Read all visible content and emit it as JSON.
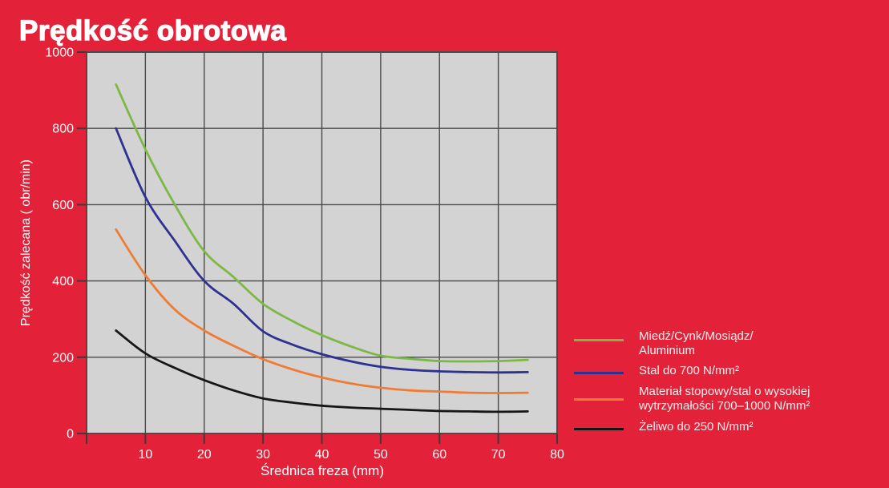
{
  "title": "Prędkość obrotowa",
  "chart_data": {
    "type": "line",
    "title": "Prędkość obrotowa",
    "xlabel": "Średnica freza (mm)",
    "ylabel": "Prędkość zalecana ( obr/min)",
    "xlim": [
      0,
      80
    ],
    "ylim": [
      0,
      1000
    ],
    "grid": true,
    "x_gridlines": [
      10,
      20,
      30,
      40,
      50,
      60,
      70
    ],
    "y_gridlines": [
      200,
      400,
      600,
      800
    ],
    "x_ticks": [
      {
        "value": 0,
        "label": ""
      },
      {
        "value": 10,
        "label": "10"
      },
      {
        "value": 20,
        "label": "20"
      },
      {
        "value": 30,
        "label": "30"
      },
      {
        "value": 40,
        "label": "40"
      },
      {
        "value": 50,
        "label": "50"
      },
      {
        "value": 60,
        "label": "60"
      },
      {
        "value": 70,
        "label": "70"
      },
      {
        "value": 80,
        "label": "80"
      }
    ],
    "y_ticks": [
      {
        "value": 0,
        "label": "0"
      },
      {
        "value": 200,
        "label": "200"
      },
      {
        "value": 400,
        "label": "400"
      },
      {
        "value": 600,
        "label": "600"
      },
      {
        "value": 800,
        "label": "800"
      },
      {
        "value": 1000,
        "label": "1000"
      }
    ],
    "colors": {
      "background": "#e32138",
      "plot_bg": "#d3d3d3",
      "grid": "#4a4a4a",
      "tick": "#3c3c3c",
      "label": "#ffffff"
    },
    "legend_position": "right-bottom",
    "series": [
      {
        "name": "Miedź/Cynk/Mosiądz/Aluminium",
        "color": "#7cb944",
        "points": [
          [
            5,
            915
          ],
          [
            10,
            745
          ],
          [
            15,
            600
          ],
          [
            20,
            478
          ],
          [
            25,
            410
          ],
          [
            30,
            340
          ],
          [
            35,
            295
          ],
          [
            40,
            258
          ],
          [
            45,
            228
          ],
          [
            50,
            204
          ],
          [
            55,
            196
          ],
          [
            60,
            190
          ],
          [
            65,
            189
          ],
          [
            70,
            190
          ],
          [
            75,
            193
          ]
        ]
      },
      {
        "name": "Stal do 700 N/mm²",
        "color": "#2e3192",
        "points": [
          [
            5,
            800
          ],
          [
            10,
            620
          ],
          [
            15,
            505
          ],
          [
            20,
            400
          ],
          [
            25,
            340
          ],
          [
            30,
            268
          ],
          [
            35,
            233
          ],
          [
            40,
            208
          ],
          [
            45,
            189
          ],
          [
            50,
            175
          ],
          [
            55,
            167
          ],
          [
            60,
            163
          ],
          [
            65,
            161
          ],
          [
            70,
            160
          ],
          [
            75,
            161
          ]
        ]
      },
      {
        "name": "Materiał stopowy/stal o wysokiej wytrzymałości 700–1000 N/mm²",
        "color": "#f07c33",
        "points": [
          [
            5,
            535
          ],
          [
            10,
            415
          ],
          [
            15,
            325
          ],
          [
            20,
            270
          ],
          [
            25,
            230
          ],
          [
            30,
            195
          ],
          [
            35,
            168
          ],
          [
            40,
            147
          ],
          [
            45,
            131
          ],
          [
            50,
            120
          ],
          [
            55,
            113
          ],
          [
            60,
            110
          ],
          [
            65,
            107
          ],
          [
            70,
            106
          ],
          [
            75,
            107
          ]
        ]
      },
      {
        "name": "Żeliwo do 250 N/mm²",
        "color": "#161616",
        "points": [
          [
            5,
            270
          ],
          [
            10,
            210
          ],
          [
            15,
            172
          ],
          [
            20,
            140
          ],
          [
            25,
            113
          ],
          [
            30,
            92
          ],
          [
            35,
            81
          ],
          [
            40,
            73
          ],
          [
            45,
            68
          ],
          [
            50,
            65
          ],
          [
            55,
            62
          ],
          [
            60,
            59
          ],
          [
            65,
            58
          ],
          [
            70,
            57
          ],
          [
            75,
            58
          ]
        ]
      }
    ]
  },
  "legend": {
    "items": [
      {
        "line1": "Miedź/Cynk/Mosiądz/",
        "line2": "Aluminium",
        "color": "#7cb944"
      },
      {
        "line1": "Stal do 700 N/mm²",
        "line2": "",
        "color": "#2e3192"
      },
      {
        "line1": "Materiał stopowy/stal o wysokiej",
        "line2": "wytrzymałości 700–1000 N/mm²",
        "color": "#f07c33"
      },
      {
        "line1": "Żeliwo do 250 N/mm²",
        "line2": "",
        "color": "#161616"
      }
    ]
  }
}
